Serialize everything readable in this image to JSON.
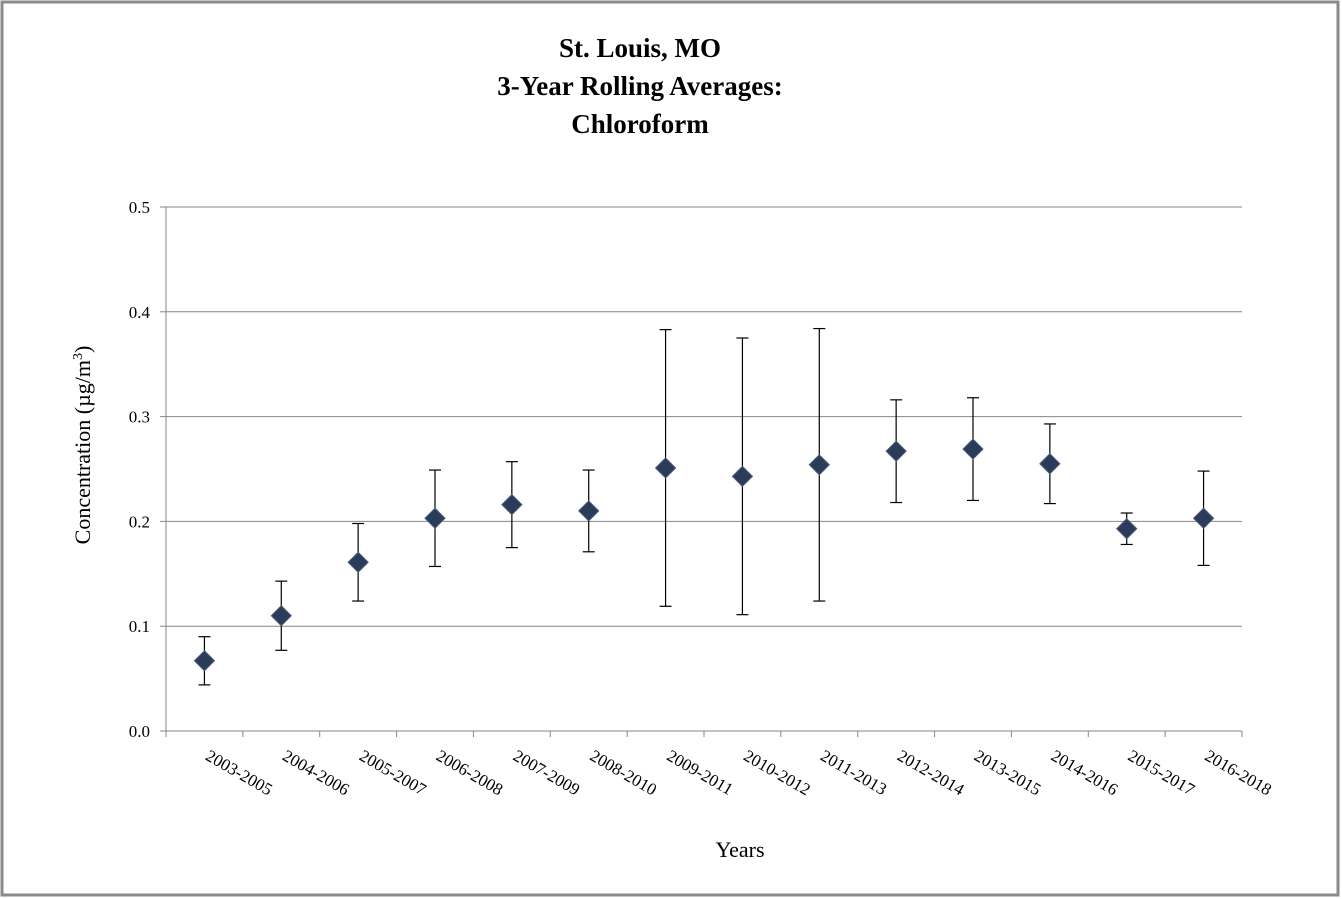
{
  "chart_data": {
    "type": "scatter",
    "title_lines": [
      "St. Louis, MO",
      "3-Year Rolling Averages:",
      "Chloroform"
    ],
    "y_label_parts": [
      "Concentration (µg/m",
      "3",
      ")"
    ],
    "x_label": "Years",
    "categories": [
      "2003-2005",
      "2004-2006",
      "2005-2007",
      "2006-2008",
      "2007-2009",
      "2008-2010",
      "2009-2011",
      "2010-2012",
      "2011-2013",
      "2012-2014",
      "2013-2015",
      "2014-2016",
      "2015-2017",
      "2016-2018"
    ],
    "values": [
      0.067,
      0.11,
      0.161,
      0.203,
      0.216,
      0.21,
      0.251,
      0.243,
      0.254,
      0.267,
      0.269,
      0.255,
      0.193,
      0.203
    ],
    "errors": [
      0.023,
      0.033,
      0.037,
      0.046,
      0.041,
      0.039,
      0.132,
      0.132,
      0.13,
      0.049,
      0.049,
      0.038,
      0.015,
      0.045
    ],
    "color": "#2b3c5a",
    "ylim": [
      0,
      0.5
    ],
    "yticks": [
      {
        "value": 0,
        "label": "0.0"
      },
      0.1,
      0.2,
      0.3,
      0.4,
      0.5
    ],
    "grid": true
  }
}
